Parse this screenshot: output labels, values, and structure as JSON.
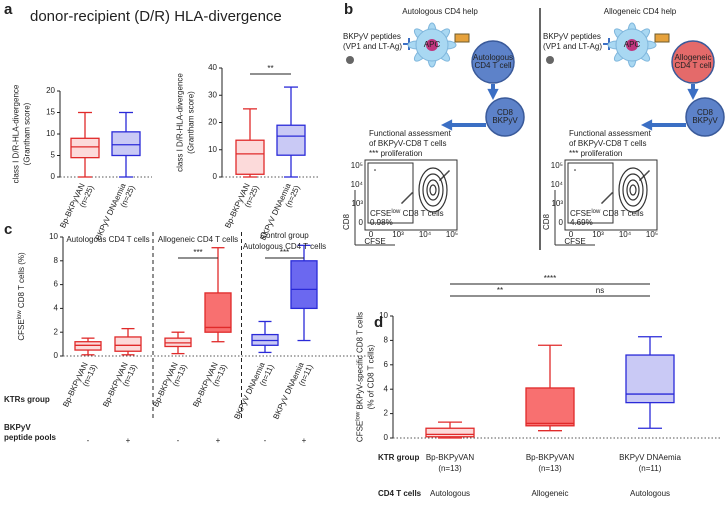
{
  "figure": {
    "labels": [
      "a",
      "b",
      "c",
      "d"
    ],
    "title": "donor-recipient (D/R) HLA-divergence"
  },
  "diagram": {
    "sides": [
      {
        "title": "Autologous CD4 help",
        "cd4_lines": [
          "Autologous",
          "CD4 T cell"
        ],
        "percent": "0.98%"
      },
      {
        "title": "Allogeneic CD4 help",
        "cd4_lines": [
          "Allogeneic",
          "CD4 T cell"
        ],
        "percent": "4.69%"
      }
    ],
    "peptide_lines": [
      "BKPyV peptides",
      "(VP1 and LT-Ag)"
    ],
    "apc": "APC",
    "cd8_lines": [
      "CD8",
      "BKPyV"
    ],
    "assessment_lines": [
      "Functional assessment",
      "of BKPyV-CD8 T cells",
      "*** proliferation"
    ],
    "gate": {
      "base": "CFSE",
      "sup": "low",
      "rest": " CD8 T cells"
    },
    "flow_yticks": [
      "10⁵",
      "10⁴",
      "10³",
      "0"
    ],
    "flow_xticks": [
      "0",
      "10³",
      "10⁴",
      "10⁵"
    ],
    "flow_ylabel": "CD8",
    "flow_xlabel": "CFSE"
  },
  "chart_data": [
    {
      "type": "box",
      "ylabel": [
        {
          "base": "class I D/R-HLA-divergence"
        },
        {
          "base": "(Grantham score)"
        }
      ],
      "ylim": [
        0,
        20
      ],
      "yticks": [
        0,
        5,
        10,
        15,
        20
      ],
      "reference_line": 0,
      "groups": [
        {
          "name": "Bp-BKPyVAN",
          "n": "(n=25)",
          "fill": "#fcdada",
          "stroke": "#e02a2a",
          "min": 0,
          "q1": 4.5,
          "median": 7,
          "q3": 9,
          "max": 15
        },
        {
          "name": "BKPyV DNAemia",
          "n": "(n=25)",
          "fill": "#c9c9f5",
          "stroke": "#2a2ad8",
          "min": 0,
          "q1": 5,
          "median": 7.5,
          "q3": 10.5,
          "max": 15
        }
      ],
      "comparisons": []
    },
    {
      "type": "box",
      "ylabel": [
        {
          "base": "class I D/R-HLA-divergence"
        },
        {
          "base": "(Grantham score)"
        }
      ],
      "ylim": [
        0,
        40
      ],
      "yticks": [
        0,
        10,
        20,
        30,
        40
      ],
      "reference_line": 0,
      "groups": [
        {
          "name": "Bp-BKPyVAN",
          "n": "(n=25)",
          "fill": "#fcdada",
          "stroke": "#e02a2a",
          "min": 0,
          "q1": 1,
          "median": 8.5,
          "q3": 13.5,
          "max": 25
        },
        {
          "name": "BKPyV DNAemia",
          "n": "(n=25)",
          "fill": "#c9c9f5",
          "stroke": "#2a2ad8",
          "min": 0,
          "q1": 8,
          "median": 15,
          "q3": 19,
          "max": 33
        }
      ],
      "comparisons": [
        {
          "groups": [
            0,
            1
          ],
          "label": "**"
        }
      ]
    },
    {
      "type": "box",
      "ylabel": [
        {
          "base": "CFSE",
          "sup": "low",
          "rest": " CD8 T cells (%)"
        }
      ],
      "ylim": [
        0,
        10
      ],
      "yticks": [
        0,
        2,
        4,
        6,
        8,
        10
      ],
      "reference_line": 0,
      "headers": [
        {
          "lines": [
            "Autologous CD4 T cells"
          ],
          "span": [
            0,
            1
          ]
        },
        {
          "lines": [
            "Allogeneic CD4 T cells"
          ],
          "span": [
            2,
            3
          ]
        },
        {
          "lines": [
            "Control group",
            "Autologous CD4 T cells"
          ],
          "span": [
            4,
            5
          ]
        }
      ],
      "row_labels": [
        {
          "lines": [
            "KTRs group"
          ]
        },
        {
          "lines": [
            "BKPyV",
            "peptide pools"
          ]
        }
      ],
      "groups": [
        {
          "name": "Bp-BKPyVAN",
          "n": "(n=13)",
          "condition": "-",
          "fill": "#fcdada",
          "stroke": "#e02a2a",
          "min": 0.1,
          "q1": 0.5,
          "median": 0.9,
          "q3": 1.2,
          "max": 1.5
        },
        {
          "name": "Bp-BKPyVAN",
          "n": "(n=13)",
          "condition": "+",
          "fill": "#fcdada",
          "stroke": "#e02a2a",
          "min": 0.1,
          "q1": 0.4,
          "median": 0.9,
          "q3": 1.6,
          "max": 2.3
        },
        {
          "name": "Bp-BKPyVAN",
          "n": "(n=13)",
          "condition": "-",
          "fill": "#fcdada",
          "stroke": "#e02a2a",
          "min": 0.2,
          "q1": 0.8,
          "median": 1.1,
          "q3": 1.5,
          "max": 2.0
        },
        {
          "name": "Bp-BKPyVAN",
          "n": "(n=13)",
          "condition": "+",
          "fill": "#f87070",
          "stroke": "#e02a2a",
          "min": 1.2,
          "q1": 2.0,
          "median": 2.4,
          "q3": 5.3,
          "max": 9.1
        },
        {
          "name": "BKPyV DNAemia",
          "n": "(n=11)",
          "condition": "-",
          "fill": "#c9c9f5",
          "stroke": "#2a2ad8",
          "min": 0.3,
          "q1": 0.9,
          "median": 1.3,
          "q3": 1.8,
          "max": 2.9
        },
        {
          "name": "BKPyV DNAemia",
          "n": "(n=11)",
          "condition": "+",
          "fill": "#6b68f0",
          "stroke": "#2a2ad8",
          "min": 1.3,
          "q1": 4.0,
          "median": 5.6,
          "q3": 8.0,
          "max": 9.3
        }
      ],
      "comparisons": [
        {
          "groups": [
            2,
            3
          ],
          "label": "***"
        },
        {
          "groups": [
            4,
            5
          ],
          "label": "***"
        }
      ]
    },
    {
      "type": "box",
      "ylabel": [
        {
          "base": "CFSE",
          "sup": "low",
          "rest": " BKPyV-specific CD8 T cells"
        },
        {
          "base": "(% of CD8 T cells)"
        }
      ],
      "ylim": [
        0,
        10
      ],
      "yticks": [
        0,
        2,
        4,
        6,
        8,
        10
      ],
      "reference_line": 0,
      "row_labels": [
        {
          "lines": [
            "KTR group"
          ]
        },
        {
          "lines": [
            "CD4 T cells"
          ]
        }
      ],
      "groups": [
        {
          "name": "Bp-BKPyVAN",
          "n": "(n=13)",
          "condition": "Autologous",
          "fill": "#fcdada",
          "stroke": "#e02a2a",
          "min": 0,
          "q1": 0.1,
          "median": 0.3,
          "q3": 0.8,
          "max": 1.3
        },
        {
          "name": "Bp-BKPyVAN",
          "n": "(n=13)",
          "condition": "Allogeneic",
          "fill": "#f87070",
          "stroke": "#e02a2a",
          "min": 0.6,
          "q1": 1.0,
          "median": 1.2,
          "q3": 4.1,
          "max": 7.6
        },
        {
          "name": "BKPyV DNAemia",
          "n": "(n=11)",
          "condition": "Autologous",
          "fill": "#c9c9f5",
          "stroke": "#2a2ad8",
          "min": 0.8,
          "q1": 2.9,
          "median": 3.6,
          "q3": 6.8,
          "max": 8.3
        }
      ],
      "comparisons": [
        {
          "groups": [
            0,
            1
          ],
          "label": "**"
        },
        {
          "groups": [
            0,
            2
          ],
          "label": "****"
        },
        {
          "groups": [
            1,
            2
          ],
          "label": "ns"
        }
      ]
    }
  ]
}
